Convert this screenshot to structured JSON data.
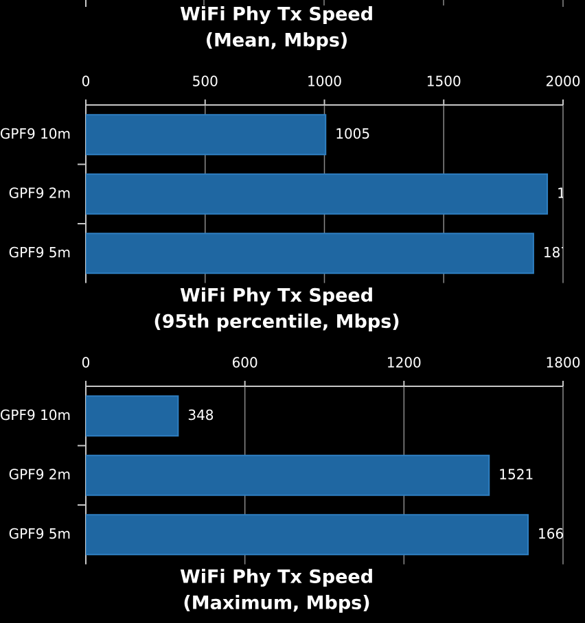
{
  "chart_data": [
    {
      "type": "bar",
      "title": "WiFi Phy Tx Speed",
      "subtitle": "(Mean, Mbps)",
      "categories": [
        "GPF9 10m",
        "GPF9 2m",
        "GPF9 5m"
      ],
      "values": [
        1005,
        1934,
        1876
      ],
      "color": "#1f67a2",
      "xlim": [
        0,
        2000
      ],
      "xticks": [
        0,
        500,
        1000,
        1500,
        2000
      ],
      "grid": true
    },
    {
      "type": "bar",
      "title": "WiFi Phy Tx Speed",
      "subtitle": "(95th percentile, Mbps)",
      "categories": [
        "GPF9 10m",
        "GPF9 2m",
        "GPF9 5m"
      ],
      "values": [
        348,
        1521,
        1668
      ],
      "color": "#1f67a2",
      "xlim": [
        0,
        1800
      ],
      "xticks": [
        0,
        600,
        1200,
        1800
      ],
      "grid": true
    },
    {
      "type": "bar",
      "title": "WiFi Phy Tx Speed",
      "subtitle": "(Maximum, Mbps)"
    }
  ]
}
